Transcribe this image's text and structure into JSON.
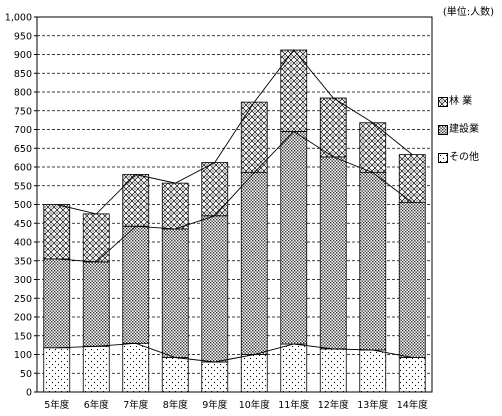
{
  "chart_data": {
    "type": "bar",
    "stacked": true,
    "unit_label": "(単位:人数)",
    "categories": [
      "5年度",
      "6年度",
      "7年度",
      "8年度",
      "9年度",
      "10年度",
      "11年度",
      "12年度",
      "13年度",
      "14年度"
    ],
    "series": [
      {
        "name": "その他",
        "values": [
          118,
          122,
          130,
          92,
          80,
          100,
          128,
          115,
          112,
          92
        ],
        "pattern": "dots-sparse"
      },
      {
        "name": "建設業",
        "values": [
          237,
          225,
          312,
          343,
          390,
          485,
          567,
          512,
          473,
          413
        ],
        "pattern": "dots-dense"
      },
      {
        "name": "林業",
        "values": [
          145,
          128,
          138,
          122,
          142,
          188,
          217,
          157,
          133,
          128
        ],
        "pattern": "checker"
      }
    ],
    "legend": [
      "林 業",
      "建設業",
      "その他"
    ],
    "yticks": [
      "0",
      "50",
      "100",
      "150",
      "200",
      "250",
      "300",
      "350",
      "400",
      "450",
      "500",
      "550",
      "600",
      "650",
      "700",
      "750",
      "800",
      "850",
      "900",
      "950",
      "1,000"
    ],
    "ylim": [
      0,
      1000
    ],
    "grid": true,
    "connector_lines": true,
    "legend_position": "right"
  }
}
